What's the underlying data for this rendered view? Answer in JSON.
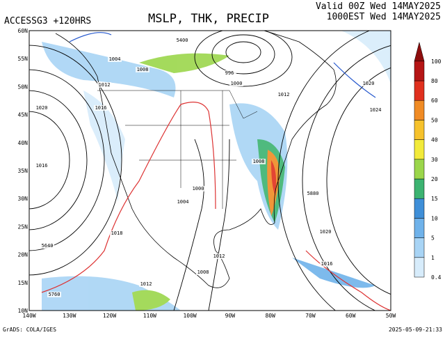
{
  "header": {
    "model": "ACCESSG3 +120HRS",
    "title": "MSLP, THK, PRECIP",
    "valid": "Valid 00Z Wed 14MAY2025",
    "local": "1000EST Wed 14MAY2025"
  },
  "lat_labels": [
    "60N",
    "55N",
    "50N",
    "45N",
    "40N",
    "35N",
    "30N",
    "25N",
    "20N",
    "15N",
    "10N"
  ],
  "lon_labels": [
    "140W",
    "130W",
    "120W",
    "110W",
    "100W",
    "90W",
    "80W",
    "70W",
    "60W",
    "50W"
  ],
  "colorbar": {
    "levels": [
      "0.4",
      "1",
      "5",
      "10",
      "15",
      "20",
      "30",
      "40",
      "50",
      "60",
      "80",
      "100"
    ],
    "colors": [
      "#d7ecfb",
      "#a8d4f5",
      "#6fb2ea",
      "#3f8fd8",
      "#3cb371",
      "#9bd64b",
      "#f2ea3a",
      "#f6c22c",
      "#f08b24",
      "#e0301e",
      "#b51515",
      "#8e0d0d",
      "#9b5fc0"
    ]
  },
  "contour_labels": [
    "1004",
    "1008",
    "1012",
    "1016",
    "1020",
    "1024",
    "996",
    "1000",
    "1020",
    "1012",
    "1016",
    "1008",
    "5760",
    "5880",
    "5640",
    "5400",
    "1012",
    "1008",
    "1004",
    "1000",
    "1018",
    "1016",
    "1020",
    "1012"
  ],
  "footer": {
    "credit": "GrADS: COLA/IGES",
    "timestamp": "2025-05-09-21:33"
  }
}
